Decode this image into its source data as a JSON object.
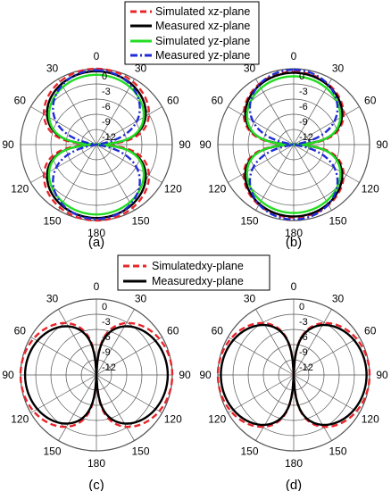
{
  "legend_top": [
    {
      "label": "Simulated xz-plane",
      "color": "#e8252b",
      "dash": "dash"
    },
    {
      "label": "Measured xz-plane",
      "color": "#000000",
      "dash": "solid"
    },
    {
      "label": "Simulated yz-plane",
      "color": "#22dd22",
      "dash": "solid"
    },
    {
      "label": "Measured yz-plane",
      "color": "#1f2bd6",
      "dash": "dashdot"
    }
  ],
  "legend_bottom": [
    {
      "label": "Simulatedxy-plane",
      "color": "#e8252b",
      "dash": "dash"
    },
    {
      "label": "Measuredxy-plane",
      "color": "#000000",
      "dash": "solid"
    }
  ],
  "chart_data": [
    {
      "type": "polar",
      "panel_label": "(a)",
      "angle_ticks": [
        "0",
        "30",
        "60",
        "90",
        "120",
        "150",
        "180"
      ],
      "radial_ticks": [
        "0",
        "-3",
        "-6",
        "-9",
        "-12"
      ],
      "radial_range_db": [
        -15,
        0
      ],
      "pattern": "figure-eight, nulls at 90 deg",
      "series": [
        {
          "name": "Simulated xz-plane",
          "color": "#e8252b",
          "dash": "dash",
          "max_db": 0,
          "shape_exponent": 2.0
        },
        {
          "name": "Measured xz-plane",
          "color": "#000000",
          "dash": "solid",
          "max_db": -0.5,
          "shape_exponent": 1.85
        },
        {
          "name": "Simulated yz-plane",
          "color": "#22dd22",
          "dash": "solid",
          "max_db": -1.2,
          "shape_exponent": 2.0
        },
        {
          "name": "Measured yz-plane",
          "color": "#1f2bd6",
          "dash": "dashdot",
          "max_db": -0.3,
          "shape_exponent": 1.1
        }
      ]
    },
    {
      "type": "polar",
      "panel_label": "(b)",
      "angle_ticks": [
        "0",
        "30",
        "60",
        "90",
        "120",
        "150",
        "180"
      ],
      "radial_ticks": [
        "0",
        "-3",
        "-6",
        "-9",
        "-12"
      ],
      "radial_range_db": [
        -15,
        0
      ],
      "pattern": "figure-eight, nulls at 90 deg",
      "series": [
        {
          "name": "Simulated xz-plane",
          "color": "#e8252b",
          "dash": "dash",
          "max_db": -0.6,
          "shape_exponent": 2.0
        },
        {
          "name": "Measured xz-plane",
          "color": "#000000",
          "dash": "solid",
          "max_db": -0.8,
          "shape_exponent": 1.9
        },
        {
          "name": "Simulated yz-plane",
          "color": "#22dd22",
          "dash": "solid",
          "max_db": -1.5,
          "shape_exponent": 2.1
        },
        {
          "name": "Measured yz-plane",
          "color": "#1f2bd6",
          "dash": "dashdot",
          "max_db": -0.2,
          "shape_exponent": 1.1
        }
      ]
    },
    {
      "type": "polar",
      "panel_label": "(c)",
      "angle_ticks": [
        "0",
        "30",
        "60",
        "90",
        "120",
        "150",
        "180"
      ],
      "radial_ticks": [
        "0",
        "-3",
        "-6",
        "-9",
        "-12"
      ],
      "radial_range_db": [
        -15,
        0
      ],
      "pattern": "figure-eight, nulls at 0 and 180 deg",
      "series": [
        {
          "name": "Simulatedxy-plane",
          "color": "#e8252b",
          "dash": "dash",
          "max_db": 0,
          "shape_exponent": 1.9
        },
        {
          "name": "Measuredxy-plane",
          "color": "#000000",
          "dash": "solid",
          "max_db": -0.9,
          "shape_exponent": 2.0
        }
      ]
    },
    {
      "type": "polar",
      "panel_label": "(d)",
      "angle_ticks": [
        "0",
        "30",
        "60",
        "90",
        "120",
        "150",
        "180"
      ],
      "radial_ticks": [
        "0",
        "-3",
        "-6",
        "-9",
        "-12"
      ],
      "radial_range_db": [
        -15,
        0
      ],
      "pattern": "figure-eight, nulls at 0 and 180 deg",
      "series": [
        {
          "name": "Simulatedxy-plane",
          "color": "#e8252b",
          "dash": "dash",
          "max_db": 0,
          "shape_exponent": 1.9
        },
        {
          "name": "Measuredxy-plane",
          "color": "#000000",
          "dash": "solid",
          "max_db": -0.6,
          "shape_exponent": 2.0
        }
      ]
    }
  ]
}
